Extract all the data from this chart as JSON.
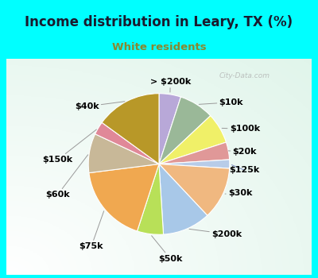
{
  "title": "Income distribution in Leary, TX (%)",
  "subtitle": "White residents",
  "bg_cyan": "#00FFFF",
  "bg_chart": "#e8f5ef",
  "labels": [
    "> $200k",
    "$10k",
    "$100k",
    "$20k",
    "$125k",
    "$30k",
    "$200k",
    "$50k",
    "$75k",
    "$60k",
    "$150k",
    "$40k"
  ],
  "sizes": [
    5,
    8,
    7,
    4,
    2,
    12,
    11,
    6,
    18,
    9,
    3,
    15
  ],
  "colors": [
    "#b8a8d8",
    "#9ab898",
    "#f0f068",
    "#e09898",
    "#b8cce8",
    "#f0b880",
    "#a8c8e8",
    "#b8e058",
    "#f0a850",
    "#c8b898",
    "#e08898",
    "#b89828"
  ],
  "title_fontsize": 12,
  "subtitle_fontsize": 9.5,
  "label_fontsize": 8,
  "watermark": "City-Data.com",
  "subtitle_color": "#888830"
}
